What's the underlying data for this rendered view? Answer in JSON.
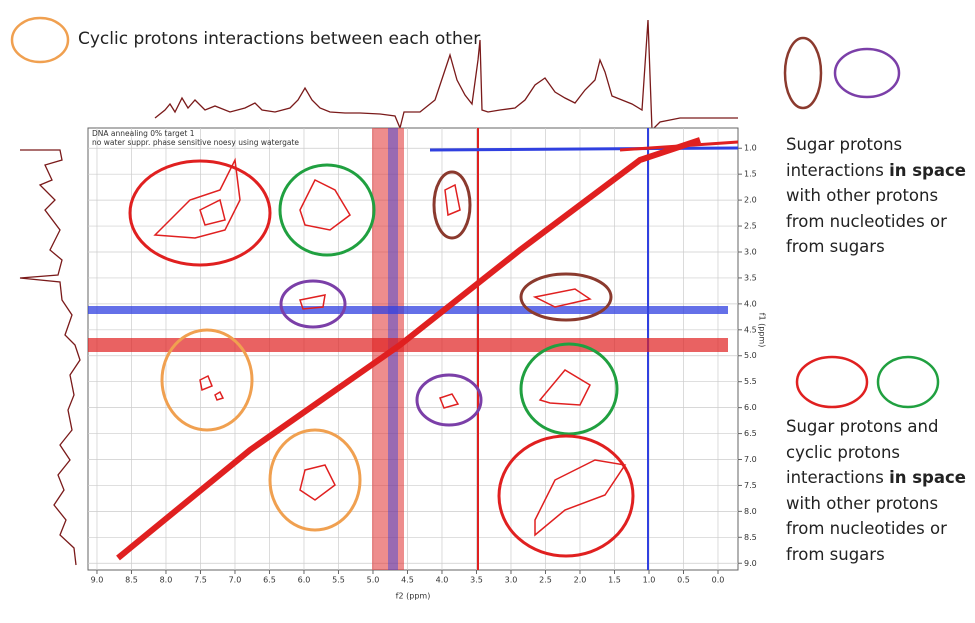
{
  "title": "Cyclic protons interactions between each other",
  "legend": [
    {
      "parts": [
        "Sugar protons interactions ",
        "in space",
        " with other protons from nucleotides or from sugars"
      ]
    },
    {
      "parts": [
        "Sugar protons and cyclic protons interactions ",
        "in space",
        " with other protons from nucleotides or from sugars"
      ]
    }
  ],
  "chart_data": {
    "type": "contour",
    "header": [
      "DNA annealing 0% target 1",
      "no water suppr. phase sensitive noesy using watergate"
    ],
    "x_label": "f2 (ppm)",
    "y_label": "f1 (ppm)",
    "xlim": [
      9.13,
      -0.29
    ],
    "ylim": [
      0.61,
      9.13
    ],
    "xticks": [
      {
        "value": 9,
        "label": "9.0"
      },
      8.5,
      {
        "value": 8,
        "label": "8.0"
      },
      7.5,
      {
        "value": 7,
        "label": "7.0"
      },
      6.5,
      {
        "value": 6,
        "label": "6.0"
      },
      5.5,
      {
        "value": 5,
        "label": "5.0"
      },
      4.5,
      {
        "value": 4,
        "label": "4.0"
      },
      3.5,
      {
        "value": 3,
        "label": "3.0"
      },
      2.5,
      {
        "value": 2,
        "label": "2.0"
      },
      1.5,
      {
        "value": 1,
        "label": "1.0"
      },
      0.5,
      {
        "value": 0,
        "label": "0.0"
      }
    ],
    "yticks": [
      {
        "value": 1,
        "label": "1.0"
      },
      1.5,
      {
        "value": 2,
        "label": "2.0"
      },
      2.5,
      {
        "value": 3,
        "label": "3.0"
      },
      3.5,
      {
        "value": 4,
        "label": "4.0"
      },
      4.5,
      {
        "value": 5,
        "label": "5.0"
      },
      5.5,
      {
        "value": 6,
        "label": "6.0"
      },
      6.5,
      {
        "value": 7,
        "label": "7.0"
      },
      7.5,
      {
        "value": 8,
        "label": "8.0"
      },
      8.5,
      {
        "value": 9,
        "label": "9.0"
      }
    ],
    "grid": true
  }
}
